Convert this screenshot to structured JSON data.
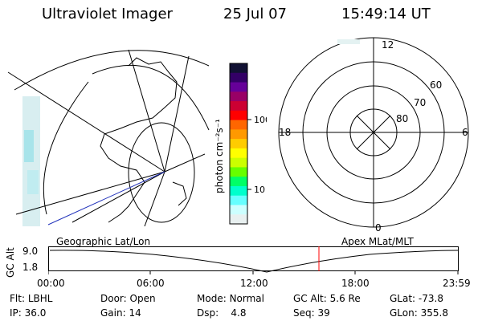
{
  "header": {
    "instrument": "Ultraviolet Imager",
    "date": "25 Jul 07",
    "time": "15:49:14 UT"
  },
  "colorbar": {
    "unit_label": "photon cm⁻²s⁻¹",
    "ticks": [
      "100",
      "10"
    ],
    "colors": [
      "#111133",
      "#330066",
      "#660099",
      "#990066",
      "#cc0033",
      "#ff0000",
      "#ff6600",
      "#ff9900",
      "#ffcc00",
      "#ffff00",
      "#ccff00",
      "#66ff00",
      "#00ff66",
      "#00ffcc",
      "#66ffff",
      "#ccffff",
      "#e8f0f0"
    ]
  },
  "apex_polar": {
    "labels": {
      "top": "12",
      "bottom": "0",
      "left": "18",
      "right": "6"
    },
    "lat_labels": [
      "60",
      "70",
      "80"
    ]
  },
  "timeline": {
    "left_label": "Geographic Lat/Lon",
    "right_label": "Apex MLat/MLT",
    "y_title": "GC Alt",
    "y_ticks": [
      "9.0",
      "1.8"
    ],
    "x_ticks": [
      "00:00",
      "06:00",
      "12:00",
      "18:00",
      "23:59"
    ],
    "current_marker_color": "#ff0000"
  },
  "status": {
    "flt_label": "Flt:",
    "flt_value": "LBHL",
    "ip_label": "IP:",
    "ip_value": "36.0",
    "door_label": "Door:",
    "door_value": "Open",
    "gain_label": "Gain:",
    "gain_value": "14",
    "mode_label": "Mode:",
    "mode_value": "Normal",
    "dsp_label": "Dsp:",
    "dsp_value": "4.8",
    "gcalt_label": "GC Alt:",
    "gcalt_value": "5.6 Re",
    "seq_label": "Seq:",
    "seq_value": "39",
    "glat_label": "GLat:",
    "glat_value": "-73.8",
    "glon_label": "GLon:",
    "glon_value": "355.8"
  }
}
